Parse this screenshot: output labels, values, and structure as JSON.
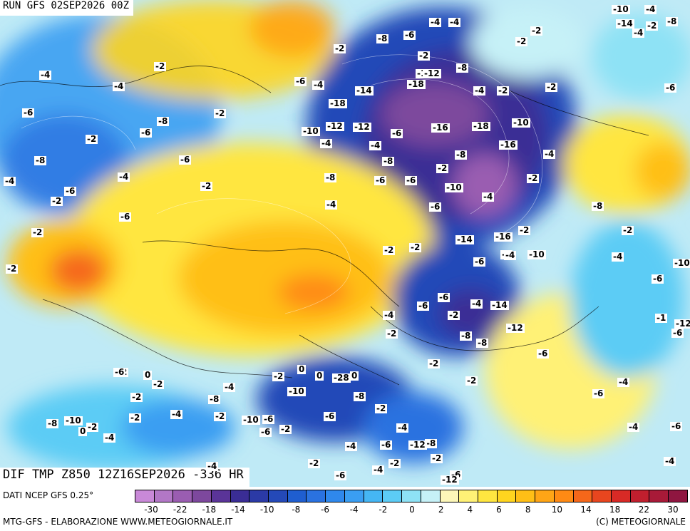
{
  "header": {
    "run": "RUN GFS 02SEP2026 00Z",
    "field": "DIF TMP Z850 12Z16SEP2026 -336 HR"
  },
  "footer": {
    "source": "DATI NCEP GFS 0.25°",
    "credit_left": "MTG-GFS - ELABORAZIONE WWW.METEOGIORNALE.IT",
    "credit_right": "(C) METEOGIORNALE"
  },
  "legend": {
    "colors": [
      "#c989d8",
      "#b277c6",
      "#9a5db1",
      "#7d489d",
      "#5a3498",
      "#3a2d95",
      "#2b3aa6",
      "#2449b8",
      "#1f5ed0",
      "#2a72e0",
      "#2f88ec",
      "#3a9ef2",
      "#45b6f4",
      "#5cccf5",
      "#8ee2f5",
      "#c6f1f7",
      "#fdf7b8",
      "#fff176",
      "#ffe640",
      "#ffd51f",
      "#ffbf16",
      "#ffa516",
      "#ff8a14",
      "#f5671a",
      "#e8461f",
      "#d82a26",
      "#c01f2e",
      "#a81a38",
      "#8f1640"
    ],
    "ticks": [
      "-30",
      "-22",
      "-18",
      "-14",
      "-10",
      "-8",
      "-6",
      "-4",
      "-2",
      "0",
      "2",
      "4",
      "6",
      "8",
      "10",
      "14",
      "18",
      "22",
      "30"
    ]
  },
  "map_labels": [
    "-4",
    "-2",
    "-6",
    "-8",
    "-4",
    "-6",
    "-2",
    "-6",
    "-4",
    "-8",
    "-6",
    "-10",
    "-12",
    "-2",
    "-2",
    "-14",
    "-16",
    "-4",
    "-6",
    "-4",
    "-8",
    "-18",
    "-2",
    "-6",
    "-4",
    "-4",
    "-2",
    "-10",
    "-14",
    "-4",
    "-2",
    "-8",
    "-6",
    "-4",
    "-2",
    "-2",
    "-2",
    "-10",
    "-8",
    "-12",
    "-16",
    "-18",
    "-2",
    "-8",
    "-6",
    "-6",
    "-4",
    "-16",
    "-2",
    "-10",
    "-2",
    "-4",
    "-4",
    "-8",
    "-18",
    "-12",
    "-4",
    "-8",
    "-6",
    "-6",
    "-14",
    "-16",
    "-6",
    "-2",
    "-6",
    "-4",
    "-10",
    "-2",
    "-2",
    "-4",
    "-6",
    "-6",
    "-2",
    "-4",
    "-8",
    "-14",
    "-12",
    "-4",
    "-2",
    "-8",
    "-6",
    "-2",
    "-8",
    "-2",
    "-4",
    "-6",
    "-10",
    "-1",
    "-12",
    "-6",
    "-6",
    "-4",
    "-4",
    "-6",
    "-4",
    "-2",
    "-8",
    "-2",
    "-12",
    "-6",
    "-4",
    "-2",
    "0",
    "-8",
    "-2",
    "0",
    "-2",
    "0",
    "-28",
    "-10",
    "-6",
    "-4",
    "-4",
    "-6",
    "-12",
    "-6",
    "-2",
    "-2",
    "-6",
    "-10",
    "-6",
    "-8",
    "-2",
    "-4",
    "-2",
    "-2",
    "-2",
    "0",
    "-2",
    "-4",
    "-6",
    "0",
    "-2",
    "-4",
    "-4",
    "-10",
    "-8",
    "-2",
    "-2",
    "-6",
    "-4",
    "-2"
  ]
}
